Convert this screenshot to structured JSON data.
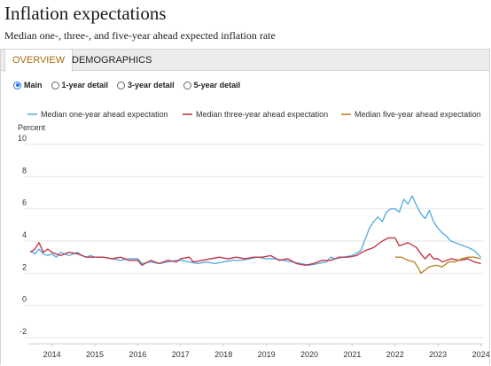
{
  "header": {
    "title": "Inflation expectations",
    "subtitle": "Median one-, three-, and five-year ahead expected inflation rate"
  },
  "tabs": [
    {
      "label": "OVERVIEW",
      "active": true
    },
    {
      "label": "DEMOGRAPHICS",
      "active": false
    }
  ],
  "radio_options": [
    {
      "label": "Main",
      "checked": true
    },
    {
      "label": "1-year detail",
      "checked": false
    },
    {
      "label": "3-year detail",
      "checked": false
    },
    {
      "label": "5-year detail",
      "checked": false
    }
  ],
  "colors": {
    "one_year": "#5aafe0",
    "three_year": "#c13a4a",
    "five_year": "#b8862e",
    "grid": "#e6e6e6",
    "accent_tab": "#a36a10",
    "radio_checked": "#1a73e8"
  },
  "chart_data": {
    "type": "line",
    "ylabel": "Percent",
    "ylim": [
      -2,
      10
    ],
    "yticks": [
      -2,
      0,
      2,
      4,
      6,
      8,
      10
    ],
    "xlim": [
      2013.45,
      2024.05
    ],
    "xticks": [
      "2014",
      "2015",
      "2016",
      "2017",
      "2018",
      "2019",
      "2020",
      "2021",
      "2022",
      "2023",
      "2024"
    ],
    "grid": "horizontal",
    "legend_position": "top",
    "series": [
      {
        "name": "Median one-year ahead expectation",
        "color_key": "one_year",
        "points": [
          [
            2013.5,
            3.4
          ],
          [
            2013.6,
            3.2
          ],
          [
            2013.7,
            3.5
          ],
          [
            2013.8,
            3.2
          ],
          [
            2013.9,
            3.1
          ],
          [
            2014.0,
            3.2
          ],
          [
            2014.1,
            3.0
          ],
          [
            2014.2,
            3.3
          ],
          [
            2014.3,
            3.2
          ],
          [
            2014.4,
            3.1
          ],
          [
            2014.5,
            3.2
          ],
          [
            2014.6,
            3.3
          ],
          [
            2014.7,
            3.1
          ],
          [
            2014.8,
            3.0
          ],
          [
            2014.9,
            3.1
          ],
          [
            2015.0,
            3.0
          ],
          [
            2015.2,
            3.0
          ],
          [
            2015.4,
            2.9
          ],
          [
            2015.6,
            2.8
          ],
          [
            2015.8,
            2.9
          ],
          [
            2016.0,
            2.9
          ],
          [
            2016.1,
            2.6
          ],
          [
            2016.3,
            2.7
          ],
          [
            2016.5,
            2.6
          ],
          [
            2016.7,
            2.7
          ],
          [
            2016.9,
            2.8
          ],
          [
            2017.0,
            2.8
          ],
          [
            2017.2,
            2.7
          ],
          [
            2017.4,
            2.6
          ],
          [
            2017.6,
            2.7
          ],
          [
            2017.8,
            2.6
          ],
          [
            2018.0,
            2.7
          ],
          [
            2018.2,
            2.8
          ],
          [
            2018.4,
            2.8
          ],
          [
            2018.6,
            2.9
          ],
          [
            2018.8,
            3.0
          ],
          [
            2019.0,
            2.9
          ],
          [
            2019.2,
            2.9
          ],
          [
            2019.4,
            2.8
          ],
          [
            2019.6,
            2.7
          ],
          [
            2019.8,
            2.6
          ],
          [
            2020.0,
            2.5
          ],
          [
            2020.2,
            2.6
          ],
          [
            2020.4,
            2.7
          ],
          [
            2020.5,
            3.0
          ],
          [
            2020.6,
            2.9
          ],
          [
            2020.8,
            3.0
          ],
          [
            2021.0,
            3.1
          ],
          [
            2021.2,
            3.4
          ],
          [
            2021.3,
            4.1
          ],
          [
            2021.4,
            4.8
          ],
          [
            2021.5,
            5.2
          ],
          [
            2021.6,
            5.5
          ],
          [
            2021.7,
            5.2
          ],
          [
            2021.8,
            5.8
          ],
          [
            2021.9,
            6.0
          ],
          [
            2022.0,
            6.0
          ],
          [
            2022.1,
            5.8
          ],
          [
            2022.2,
            6.6
          ],
          [
            2022.3,
            6.3
          ],
          [
            2022.4,
            6.8
          ],
          [
            2022.5,
            6.2
          ],
          [
            2022.6,
            5.7
          ],
          [
            2022.7,
            5.4
          ],
          [
            2022.8,
            5.9
          ],
          [
            2022.9,
            5.2
          ],
          [
            2023.0,
            4.8
          ],
          [
            2023.1,
            4.5
          ],
          [
            2023.2,
            4.3
          ],
          [
            2023.3,
            4.0
          ],
          [
            2023.5,
            3.8
          ],
          [
            2023.7,
            3.6
          ],
          [
            2023.85,
            3.4
          ],
          [
            2024.0,
            3.0
          ]
        ]
      },
      {
        "name": "Median three-year ahead expectation",
        "color_key": "three_year",
        "points": [
          [
            2013.5,
            3.3
          ],
          [
            2013.6,
            3.5
          ],
          [
            2013.7,
            3.9
          ],
          [
            2013.8,
            3.3
          ],
          [
            2013.9,
            3.5
          ],
          [
            2014.0,
            3.3
          ],
          [
            2014.2,
            3.1
          ],
          [
            2014.4,
            3.3
          ],
          [
            2014.6,
            3.2
          ],
          [
            2014.8,
            3.0
          ],
          [
            2015.0,
            3.0
          ],
          [
            2015.2,
            3.0
          ],
          [
            2015.4,
            2.9
          ],
          [
            2015.6,
            3.0
          ],
          [
            2015.8,
            2.8
          ],
          [
            2016.0,
            2.8
          ],
          [
            2016.1,
            2.5
          ],
          [
            2016.3,
            2.8
          ],
          [
            2016.5,
            2.6
          ],
          [
            2016.7,
            2.8
          ],
          [
            2016.9,
            2.7
          ],
          [
            2017.0,
            2.9
          ],
          [
            2017.2,
            3.0
          ],
          [
            2017.3,
            2.7
          ],
          [
            2017.5,
            2.8
          ],
          [
            2017.7,
            2.9
          ],
          [
            2017.9,
            3.0
          ],
          [
            2018.1,
            2.9
          ],
          [
            2018.3,
            3.0
          ],
          [
            2018.5,
            2.9
          ],
          [
            2018.7,
            3.0
          ],
          [
            2018.9,
            3.0
          ],
          [
            2019.1,
            3.1
          ],
          [
            2019.3,
            2.8
          ],
          [
            2019.5,
            2.9
          ],
          [
            2019.7,
            2.6
          ],
          [
            2019.9,
            2.5
          ],
          [
            2020.1,
            2.6
          ],
          [
            2020.3,
            2.8
          ],
          [
            2020.5,
            2.8
          ],
          [
            2020.7,
            3.0
          ],
          [
            2020.9,
            3.0
          ],
          [
            2021.1,
            3.1
          ],
          [
            2021.3,
            3.4
          ],
          [
            2021.5,
            3.6
          ],
          [
            2021.7,
            4.0
          ],
          [
            2021.85,
            4.2
          ],
          [
            2022.0,
            4.2
          ],
          [
            2022.1,
            3.7
          ],
          [
            2022.3,
            3.9
          ],
          [
            2022.5,
            3.6
          ],
          [
            2022.6,
            3.2
          ],
          [
            2022.7,
            2.9
          ],
          [
            2022.8,
            3.2
          ],
          [
            2022.9,
            2.9
          ],
          [
            2023.0,
            2.9
          ],
          [
            2023.1,
            2.7
          ],
          [
            2023.3,
            2.9
          ],
          [
            2023.5,
            2.8
          ],
          [
            2023.7,
            2.9
          ],
          [
            2023.85,
            2.7
          ],
          [
            2024.0,
            2.6
          ]
        ]
      },
      {
        "name": "Median five-year ahead expectation",
        "color_key": "five_year",
        "points": [
          [
            2022.0,
            3.0
          ],
          [
            2022.15,
            3.0
          ],
          [
            2022.3,
            2.8
          ],
          [
            2022.45,
            2.7
          ],
          [
            2022.55,
            2.3
          ],
          [
            2022.6,
            2.0
          ],
          [
            2022.7,
            2.2
          ],
          [
            2022.8,
            2.4
          ],
          [
            2022.95,
            2.5
          ],
          [
            2023.1,
            2.4
          ],
          [
            2023.25,
            2.7
          ],
          [
            2023.4,
            2.7
          ],
          [
            2023.55,
            2.9
          ],
          [
            2023.7,
            3.0
          ],
          [
            2023.85,
            3.0
          ],
          [
            2024.0,
            2.9
          ]
        ]
      }
    ]
  }
}
